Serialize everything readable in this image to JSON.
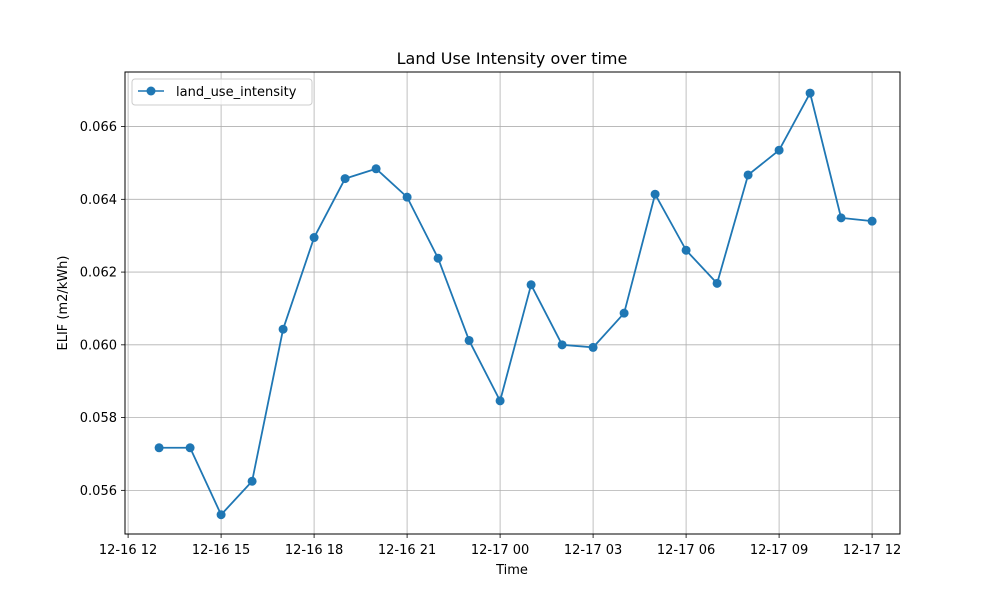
{
  "chart_data": {
    "type": "line",
    "title": "Land Use Intensity over time",
    "xlabel": "Time",
    "ylabel": "ELIF (m2/kWh)",
    "x_ticks": [
      "12-16 12",
      "12-16 15",
      "12-16 18",
      "12-16 21",
      "12-17 00",
      "12-17 03",
      "12-17 06",
      "12-17 09",
      "12-17 12"
    ],
    "y_ticks": [
      "0.056",
      "0.058",
      "0.060",
      "0.062",
      "0.064",
      "0.066"
    ],
    "ylim": [
      0.0548,
      0.0675
    ],
    "xlim": [
      "12-16 11:54",
      "12-17 12:54"
    ],
    "grid": true,
    "legend_position": "upper-left",
    "series": [
      {
        "name": "land_use_intensity",
        "color": "#1f77b4",
        "marker": "circle",
        "x": [
          "12-16 13:00",
          "12-16 14:00",
          "12-16 15:00",
          "12-16 16:00",
          "12-16 17:00",
          "12-16 18:00",
          "12-16 19:00",
          "12-16 20:00",
          "12-16 21:00",
          "12-16 22:00",
          "12-16 23:00",
          "12-17 00:00",
          "12-17 01:00",
          "12-17 02:00",
          "12-17 03:00",
          "12-17 04:00",
          "12-17 05:00",
          "12-17 06:00",
          "12-17 07:00",
          "12-17 08:00",
          "12-17 09:00",
          "12-17 10:00",
          "12-17 11:00",
          "12-17 12:00"
        ],
        "values": [
          0.05717,
          0.05717,
          0.05533,
          0.05625,
          0.06043,
          0.06295,
          0.06457,
          0.06484,
          0.06406,
          0.06238,
          0.06012,
          0.05846,
          0.06165,
          0.06,
          0.05993,
          0.06087,
          0.06414,
          0.0626,
          0.06169,
          0.06467,
          0.06535,
          0.06692,
          0.06349,
          0.0634
        ]
      }
    ]
  }
}
